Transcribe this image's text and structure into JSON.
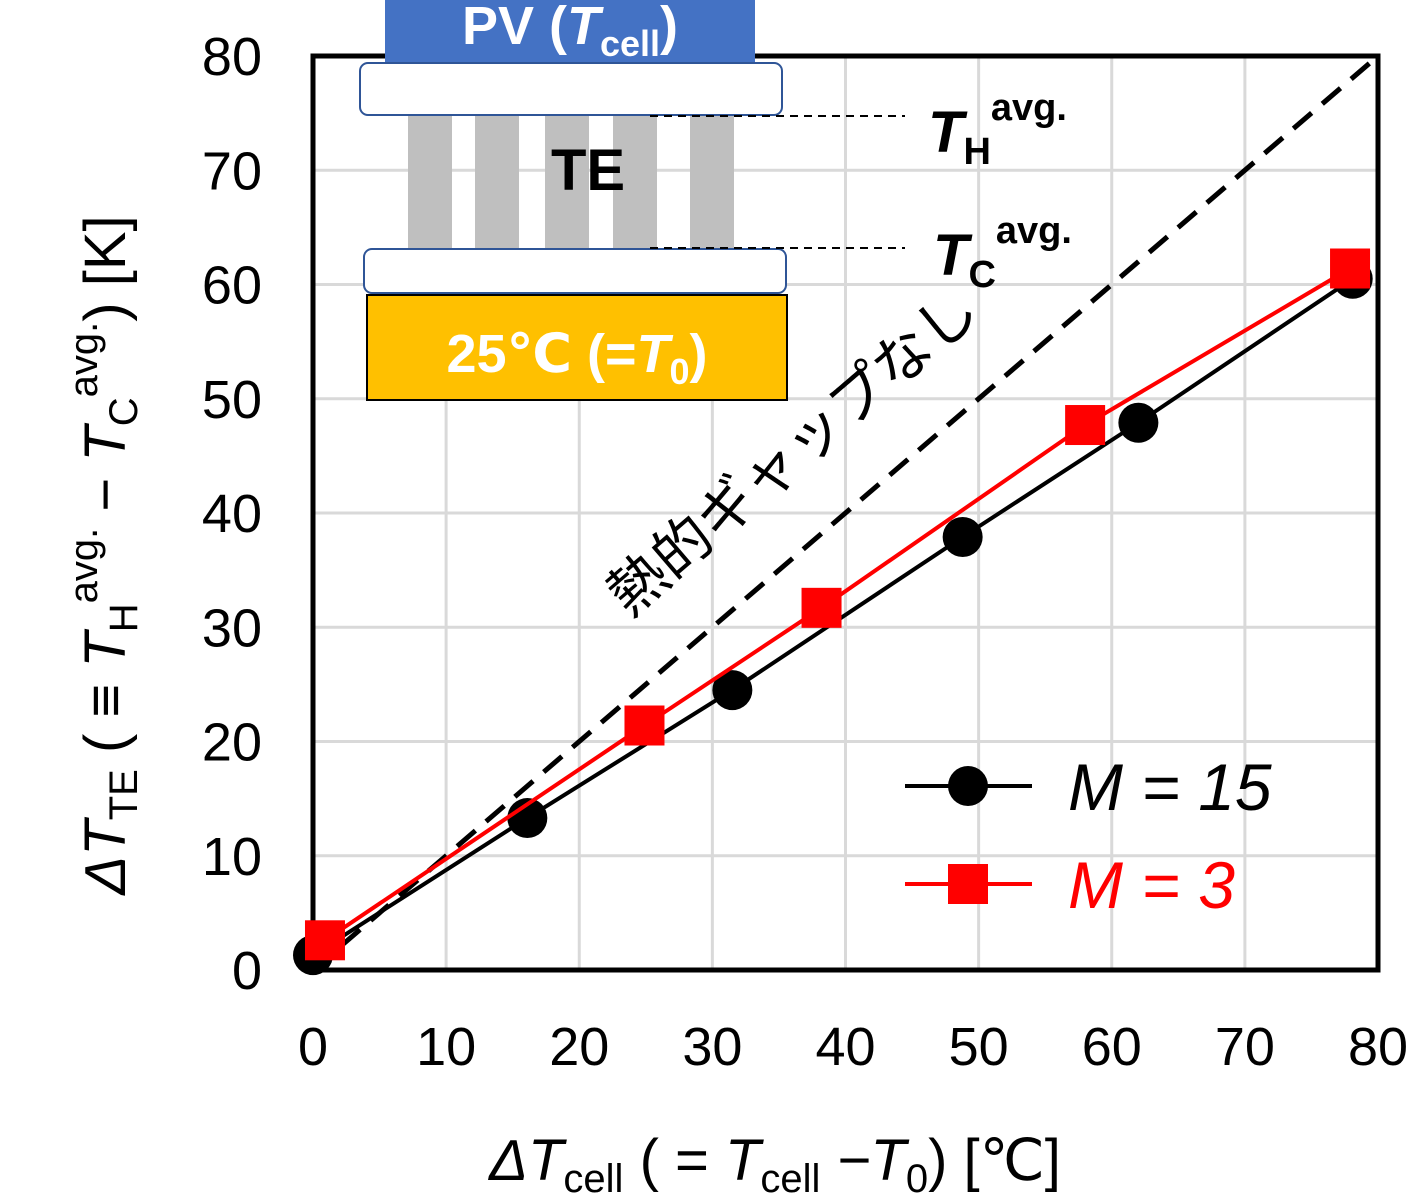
{
  "chart_data": {
    "type": "line",
    "x_label": [
      "ΔT",
      "cell",
      " ( = ",
      "T",
      "cell",
      " −T",
      "0",
      ") [℃]"
    ],
    "y_label": [
      "ΔT",
      "TE",
      " ( ≡ ",
      "T",
      "H",
      "avg.",
      " − ",
      "T",
      "C",
      "avg.",
      ") [K]"
    ],
    "xlim": [
      0,
      80
    ],
    "xticks": [
      0,
      10,
      20,
      30,
      40,
      50,
      60,
      70,
      80
    ],
    "ylim": [
      0,
      80
    ],
    "yticks": [
      0,
      10,
      20,
      30,
      40,
      50,
      60,
      70,
      80
    ],
    "grid": true,
    "legend": "lower right",
    "series": [
      {
        "name": "M = 15",
        "color": "#000000",
        "marker": "circle",
        "x": [
          0,
          16.1,
          31.5,
          48.8,
          62.0,
          78.1
        ],
        "values": [
          1.3,
          13.3,
          24.5,
          37.9,
          47.9,
          60.5
        ]
      },
      {
        "name": "M = 3",
        "color": "#ff0000",
        "marker": "square",
        "x": [
          0.9,
          24.9,
          38.2,
          58.0,
          77.9
        ],
        "values": [
          2.6,
          21.4,
          31.7,
          47.7,
          61.4
        ]
      }
    ],
    "diagonal": {
      "x": [
        0,
        80
      ],
      "values": [
        0,
        80
      ],
      "label": "熱的ギャップなし"
    },
    "inset": {
      "pv": [
        "PV (",
        "T",
        "cell",
        ")"
      ],
      "te": "TE",
      "th": [
        "T",
        "H",
        "avg."
      ],
      "tc": [
        "T",
        "C",
        "avg."
      ],
      "base": [
        "25℃ (=",
        "T",
        "0",
        ")"
      ]
    }
  }
}
